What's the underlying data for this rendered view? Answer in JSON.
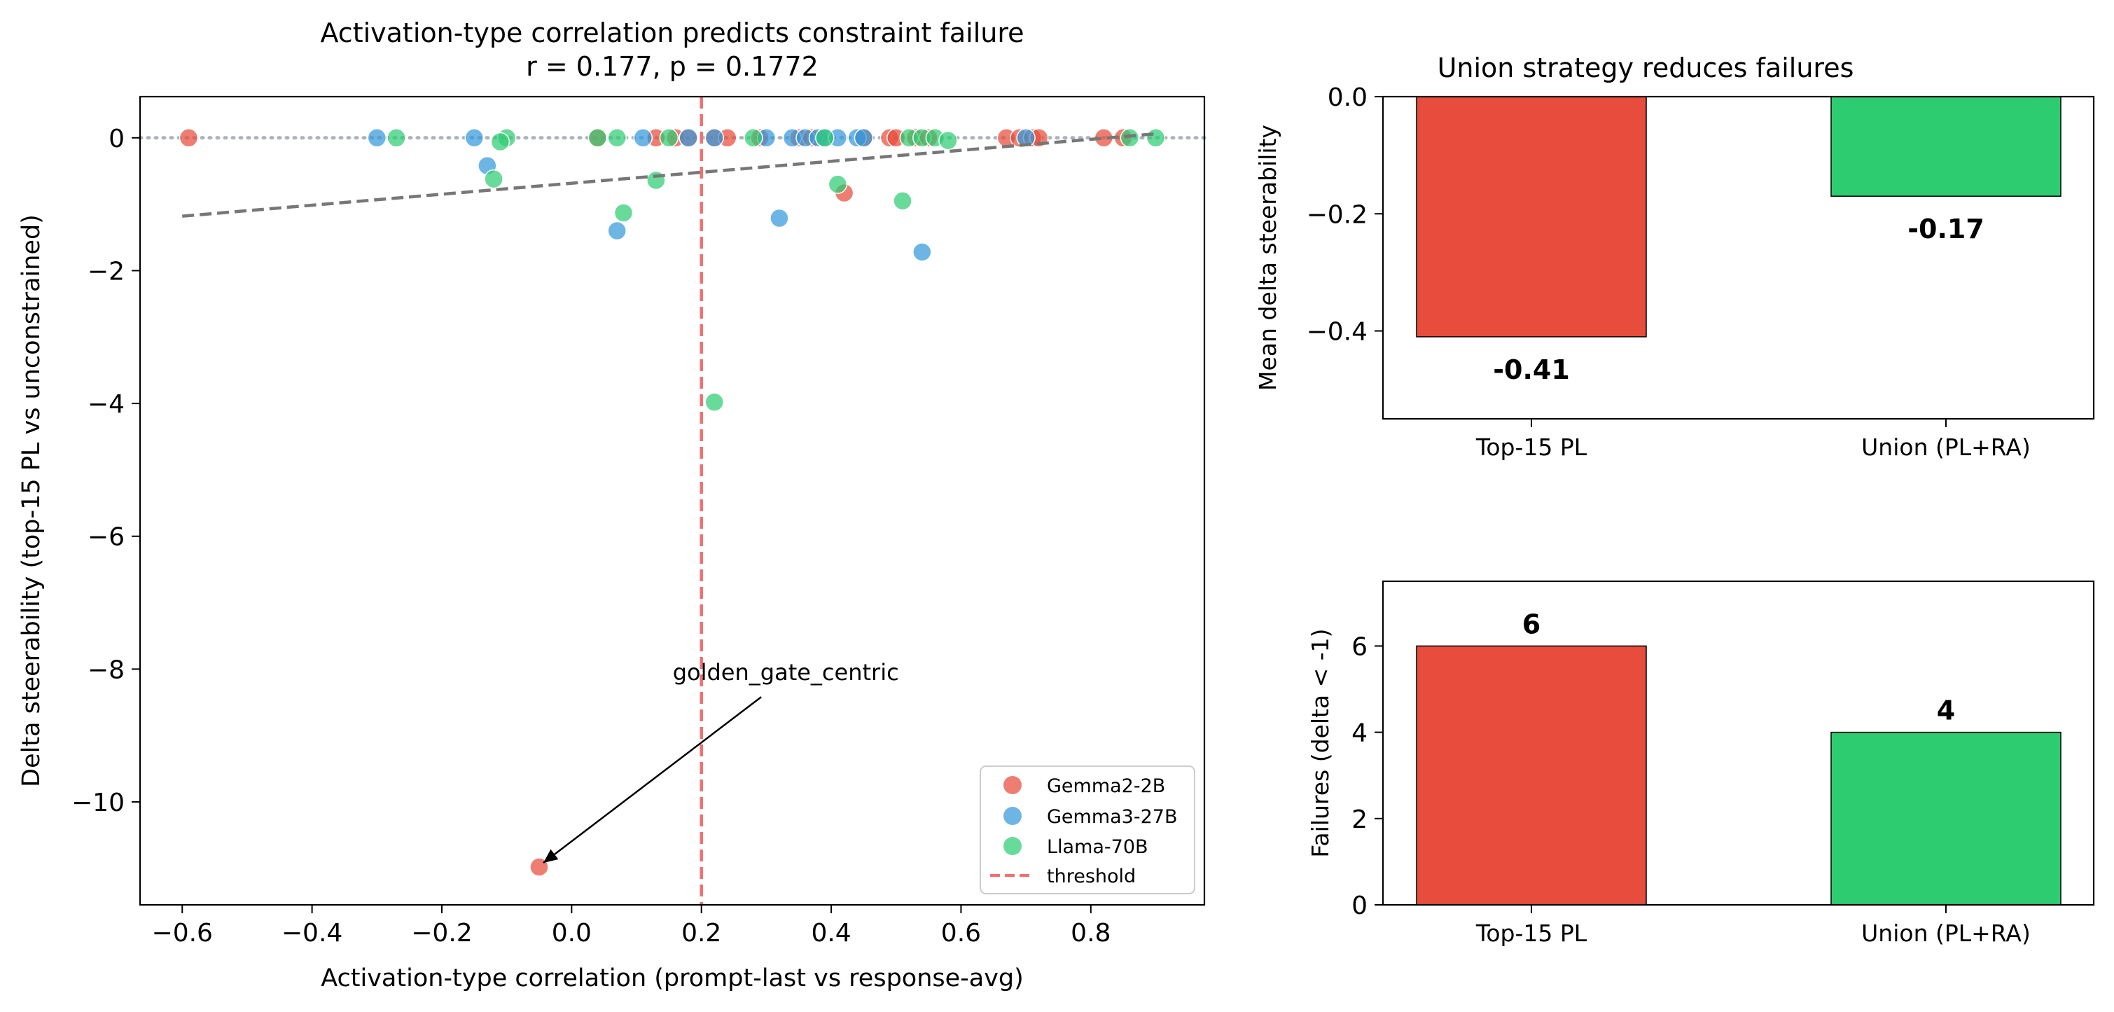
{
  "chart_data": [
    {
      "type": "scatter",
      "title": "Activation-type correlation predicts constraint failure",
      "subtitle": "r = 0.177, p = 0.1772",
      "xlabel": "Activation-type correlation (prompt-last vs response-avg)",
      "ylabel": "Delta steerability (top-15 PL vs unconstrained)",
      "xlim": [
        -0.665,
        0.975
      ],
      "ylim": [
        -11.55,
        0.62
      ],
      "xticks": [
        -0.6,
        -0.4,
        -0.2,
        0.0,
        0.2,
        0.4,
        0.6,
        0.8
      ],
      "xtick_labels": [
        "−0.6",
        "−0.4",
        "−0.2",
        "0.0",
        "0.2",
        "0.4",
        "0.6",
        "0.8"
      ],
      "yticks": [
        0,
        -2,
        -4,
        -6,
        -8,
        -10
      ],
      "ytick_labels": [
        "0",
        "−2",
        "−4",
        "−6",
        "−8",
        "−10"
      ],
      "grid": false,
      "legend_position": "lower-right",
      "series": [
        {
          "name": "Gemma2-2B",
          "color": "#e74c3c",
          "points": [
            [
              -0.59,
              0
            ],
            [
              0.04,
              0
            ],
            [
              0.13,
              0
            ],
            [
              0.16,
              0
            ],
            [
              0.18,
              0
            ],
            [
              0.22,
              0
            ],
            [
              0.24,
              0
            ],
            [
              0.29,
              0
            ],
            [
              0.35,
              0
            ],
            [
              0.37,
              0
            ],
            [
              0.45,
              0
            ],
            [
              0.49,
              0
            ],
            [
              0.5,
              0
            ],
            [
              0.53,
              0
            ],
            [
              0.55,
              0
            ],
            [
              0.67,
              0
            ],
            [
              0.69,
              0
            ],
            [
              0.71,
              0
            ],
            [
              0.72,
              0
            ],
            [
              0.82,
              0
            ],
            [
              0.85,
              0
            ],
            [
              0.42,
              -0.83
            ],
            [
              -0.05,
              -10.98
            ]
          ]
        },
        {
          "name": "Gemma3-27B",
          "color": "#3498db",
          "points": [
            [
              -0.3,
              0
            ],
            [
              -0.15,
              0
            ],
            [
              0.11,
              0
            ],
            [
              0.18,
              0
            ],
            [
              0.22,
              0
            ],
            [
              0.3,
              0
            ],
            [
              0.34,
              0
            ],
            [
              0.36,
              0
            ],
            [
              0.38,
              0
            ],
            [
              0.39,
              0
            ],
            [
              0.41,
              0
            ],
            [
              0.44,
              0
            ],
            [
              0.45,
              0
            ],
            [
              0.7,
              0
            ],
            [
              -0.13,
              -0.42
            ],
            [
              0.07,
              -1.4
            ],
            [
              0.32,
              -1.21
            ],
            [
              0.54,
              -1.72
            ]
          ]
        },
        {
          "name": "Llama-70B",
          "color": "#2ecc71",
          "points": [
            [
              -0.27,
              0
            ],
            [
              -0.1,
              0
            ],
            [
              -0.11,
              -0.06
            ],
            [
              0.04,
              0
            ],
            [
              0.07,
              0
            ],
            [
              0.15,
              0
            ],
            [
              0.28,
              0
            ],
            [
              0.39,
              0
            ],
            [
              0.52,
              0
            ],
            [
              0.54,
              0
            ],
            [
              0.56,
              0
            ],
            [
              0.58,
              -0.04
            ],
            [
              0.86,
              0
            ],
            [
              0.9,
              0
            ],
            [
              -0.12,
              -0.62
            ],
            [
              0.08,
              -1.13
            ],
            [
              0.13,
              -0.64
            ],
            [
              0.41,
              -0.7
            ],
            [
              0.51,
              -0.95
            ],
            [
              0.22,
              -3.98
            ]
          ]
        },
        {
          "name": "threshold",
          "type": "vline",
          "x": 0.2,
          "color": "#f07070",
          "style": "dashed"
        }
      ],
      "trend_line": {
        "x": [
          -0.6,
          0.9
        ],
        "y": [
          -1.18,
          0.06
        ],
        "color": "#777777",
        "style": "dashed"
      },
      "zero_line": {
        "y": 0,
        "color": "#aab4be",
        "style": "dotted"
      },
      "annotations": [
        {
          "text": "golden_gate_centric",
          "point": [
            -0.05,
            -10.98
          ],
          "text_anchor": [
            0.33,
            -8.05
          ]
        }
      ]
    },
    {
      "type": "bar",
      "title": "Union strategy reduces failures",
      "categories": [
        "Top-15 PL",
        "Union (PL+RA)"
      ],
      "values": [
        -0.41,
        -0.17
      ],
      "value_labels": [
        "-0.41",
        "-0.17"
      ],
      "colors": [
        "#e74c3c",
        "#2ecc71"
      ],
      "xlabel": "",
      "ylabel": "Mean delta steerability",
      "ylim": [
        -0.55,
        0.0
      ],
      "yticks": [
        0.0,
        -0.2,
        -0.4
      ],
      "ytick_labels": [
        "0.0",
        "−0.2",
        "−0.4"
      ],
      "reference_line_y": 0
    },
    {
      "type": "bar",
      "title": "",
      "categories": [
        "Top-15 PL",
        "Union (PL+RA)"
      ],
      "values": [
        6,
        4
      ],
      "value_labels": [
        "6",
        "4"
      ],
      "colors": [
        "#e74c3c",
        "#2ecc71"
      ],
      "xlabel": "",
      "ylabel": "Failures (delta < -1)",
      "ylim": [
        0,
        7.5
      ],
      "yticks": [
        0,
        2,
        4,
        6
      ],
      "ytick_labels": [
        "0",
        "2",
        "4",
        "6"
      ]
    }
  ]
}
